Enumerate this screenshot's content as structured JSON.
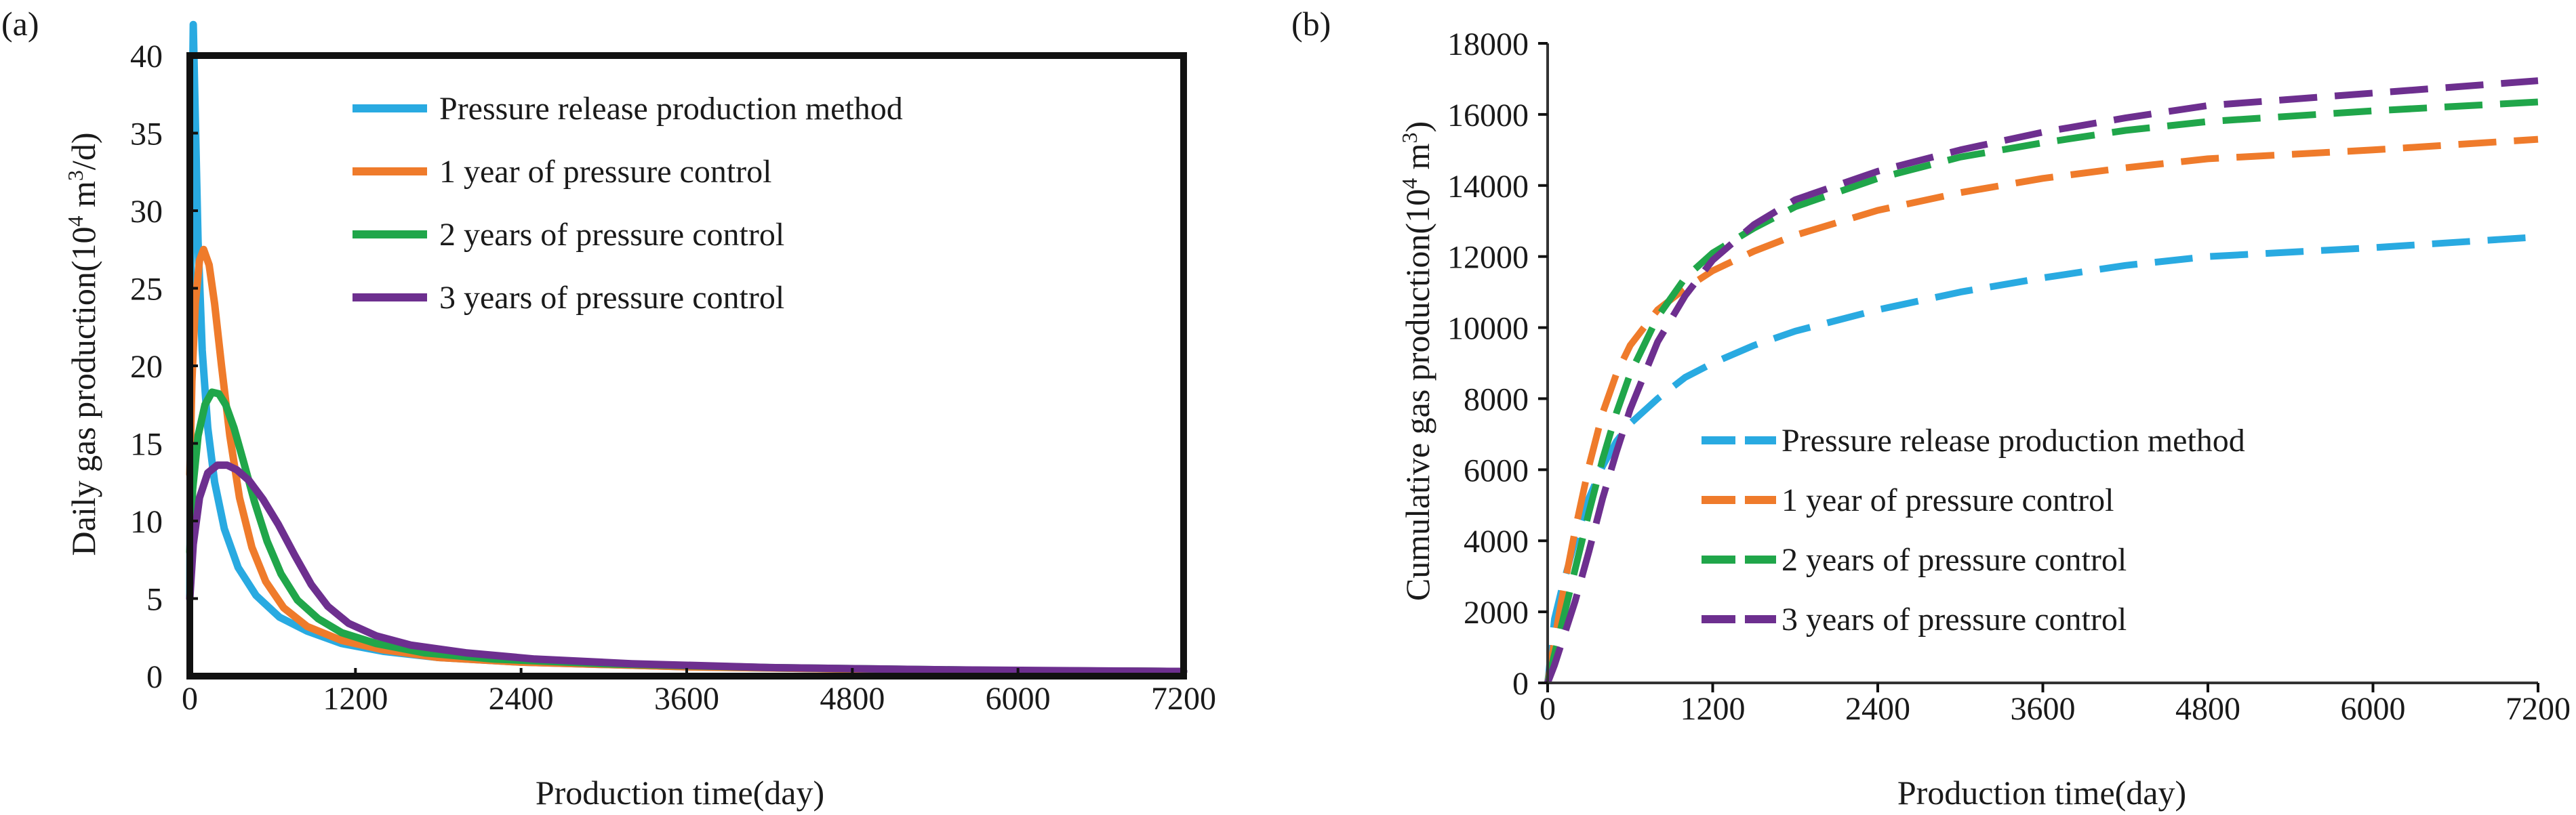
{
  "chart_data": [
    {
      "panel_label": "(a)",
      "type": "line",
      "xlabel": "Production time(day)",
      "ylabel": {
        "pre": "Daily gas production(10",
        "sup": "4",
        "mid": " m",
        "sup2": "3",
        "post": "/d)"
      },
      "xlim": [
        0,
        7200
      ],
      "ylim": [
        0,
        40
      ],
      "xticks": [
        "0",
        "1200",
        "2400",
        "3600",
        "4800",
        "6000",
        "7200"
      ],
      "yticks": [
        "0",
        "5",
        "10",
        "15",
        "20",
        "25",
        "30",
        "35",
        "40"
      ],
      "legend_position": "top-right",
      "series": [
        {
          "name": "Pressure release production method",
          "color": "#29aae1",
          "style": "solid",
          "x": [
            0,
            10,
            25,
            40,
            60,
            90,
            130,
            180,
            250,
            350,
            480,
            650,
            850,
            1100,
            1400,
            1800,
            2400,
            3600,
            4800,
            6000,
            7200
          ],
          "y": [
            5,
            30,
            42,
            36,
            28,
            21,
            16,
            12.5,
            9.5,
            7,
            5.2,
            3.8,
            2.9,
            2.1,
            1.6,
            1.2,
            0.9,
            0.6,
            0.45,
            0.35,
            0.3
          ]
        },
        {
          "name": "1 year of pressure control",
          "color": "#ef7b2b",
          "style": "solid",
          "x": [
            0,
            15,
            40,
            70,
            100,
            140,
            180,
            230,
            290,
            360,
            450,
            550,
            680,
            850,
            1100,
            1400,
            1800,
            2400,
            3600,
            4800,
            6000,
            7200
          ],
          "y": [
            13,
            19,
            24,
            26.8,
            27.5,
            26.5,
            24,
            20,
            15.5,
            11.5,
            8.3,
            6.1,
            4.4,
            3.2,
            2.3,
            1.7,
            1.2,
            0.9,
            0.6,
            0.45,
            0.35,
            0.3
          ]
        },
        {
          "name": "2 years of pressure control",
          "color": "#20a64a",
          "style": "solid",
          "x": [
            0,
            20,
            60,
            110,
            160,
            210,
            260,
            320,
            390,
            470,
            560,
            660,
            780,
            930,
            1100,
            1350,
            1700,
            2200,
            3000,
            4200,
            6000,
            7200
          ],
          "y": [
            8,
            12,
            15.5,
            17.5,
            18.3,
            18.2,
            17.5,
            16,
            13.8,
            11.2,
            8.7,
            6.6,
            4.9,
            3.7,
            2.8,
            2.1,
            1.5,
            1.1,
            0.8,
            0.55,
            0.35,
            0.3
          ]
        },
        {
          "name": "3 years of pressure control",
          "color": "#6d2f8f",
          "style": "solid",
          "x": [
            0,
            25,
            70,
            130,
            200,
            270,
            340,
            430,
            530,
            640,
            760,
            880,
            1000,
            1150,
            1350,
            1600,
            2000,
            2500,
            3200,
            4200,
            5500,
            7200
          ],
          "y": [
            5,
            8.5,
            11.5,
            13.1,
            13.6,
            13.6,
            13.3,
            12.6,
            11.4,
            9.8,
            7.8,
            5.9,
            4.5,
            3.4,
            2.6,
            2,
            1.5,
            1.1,
            0.8,
            0.55,
            0.4,
            0.3
          ]
        }
      ]
    },
    {
      "panel_label": "(b)",
      "type": "line",
      "xlabel": "Production time(day)",
      "ylabel": {
        "pre": "Cumulative gas production(10",
        "sup": "4",
        "mid": " m",
        "sup2": "3",
        "post": ")"
      },
      "xlim": [
        0,
        7200
      ],
      "ylim": [
        0,
        18000
      ],
      "xticks": [
        "0",
        "1200",
        "2400",
        "3600",
        "4800",
        "6000",
        "7200"
      ],
      "yticks": [
        "0",
        "2000",
        "4000",
        "6000",
        "8000",
        "10000",
        "12000",
        "14000",
        "16000",
        "18000"
      ],
      "legend_position": "lower-right",
      "series": [
        {
          "name": "Pressure release production method",
          "color": "#29aae1",
          "style": "dashed",
          "x": [
            0,
            50,
            100,
            200,
            300,
            400,
            500,
            600,
            800,
            1000,
            1200,
            1500,
            1800,
            2400,
            3000,
            3600,
            4200,
            4800,
            6000,
            7200
          ],
          "y": [
            0,
            1800,
            2600,
            4000,
            5200,
            6100,
            6800,
            7300,
            8000,
            8600,
            9000,
            9500,
            9900,
            10500,
            11000,
            11400,
            11750,
            12000,
            12250,
            12550
          ]
        },
        {
          "name": "1 year of pressure control",
          "color": "#ef7b2b",
          "style": "dashed",
          "x": [
            0,
            50,
            100,
            200,
            300,
            400,
            500,
            600,
            800,
            1000,
            1200,
            1500,
            1800,
            2400,
            3000,
            3600,
            4200,
            4800,
            6000,
            7200
          ],
          "y": [
            0,
            1200,
            2300,
            4300,
            6100,
            7600,
            8700,
            9500,
            10500,
            11100,
            11600,
            12150,
            12600,
            13300,
            13800,
            14200,
            14500,
            14750,
            15000,
            15300
          ]
        },
        {
          "name": "2 years of pressure control",
          "color": "#20a64a",
          "style": "dashed",
          "x": [
            0,
            50,
            100,
            200,
            300,
            400,
            500,
            600,
            800,
            1000,
            1200,
            1500,
            1800,
            2400,
            3000,
            3600,
            4200,
            4800,
            6000,
            7200
          ],
          "y": [
            0,
            800,
            1600,
            3200,
            4800,
            6300,
            7600,
            8700,
            10300,
            11400,
            12100,
            12800,
            13400,
            14200,
            14800,
            15200,
            15550,
            15800,
            16100,
            16350
          ]
        },
        {
          "name": "3 years of pressure control",
          "color": "#6d2f8f",
          "style": "dashed",
          "x": [
            0,
            50,
            100,
            200,
            300,
            400,
            500,
            600,
            800,
            1000,
            1200,
            1500,
            1800,
            2400,
            3000,
            3600,
            4200,
            4800,
            6000,
            7200
          ],
          "y": [
            0,
            500,
            1100,
            2300,
            3700,
            5200,
            6500,
            7700,
            9600,
            10900,
            11900,
            12900,
            13600,
            14400,
            15000,
            15500,
            15900,
            16250,
            16600,
            16950
          ]
        }
      ]
    }
  ]
}
